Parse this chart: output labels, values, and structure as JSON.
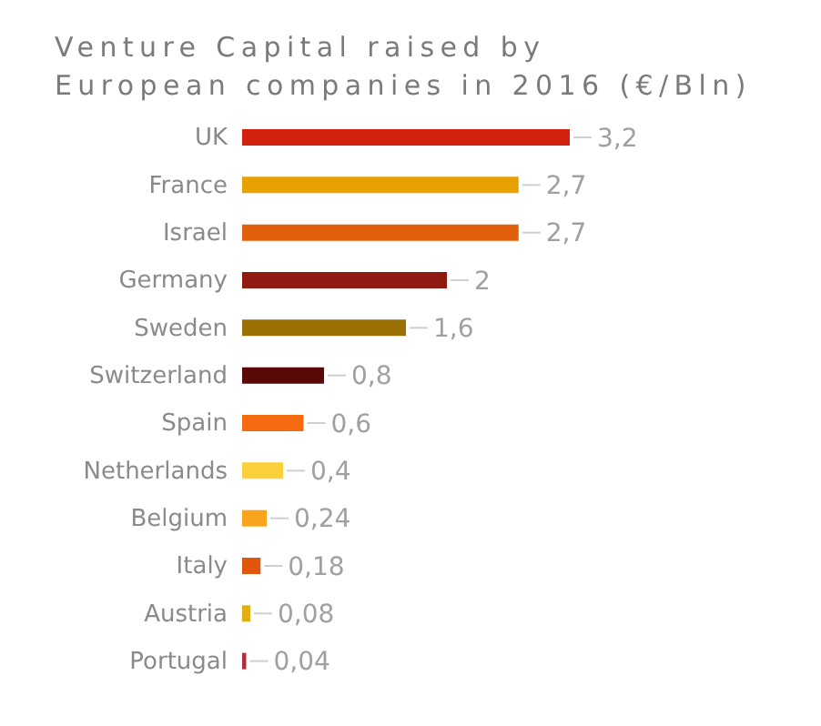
{
  "chart_data": {
    "type": "bar",
    "orientation": "horizontal",
    "title": "Venture Capital raised by\nEuropean companies in 2016 (€/Bln)",
    "categories": [
      "UK",
      "France",
      "Israel",
      "Germany",
      "Sweden",
      "Switzerland",
      "Spain",
      "Netherlands",
      "Belgium",
      "Italy",
      "Austria",
      "Portugal"
    ],
    "values": [
      3.2,
      2.7,
      2.7,
      2,
      1.6,
      0.8,
      0.6,
      0.4,
      0.24,
      0.18,
      0.08,
      0.04
    ],
    "value_labels": [
      "3,2",
      "2,7",
      "2,7",
      "2",
      "1,6",
      "0,8",
      "0,6",
      "0,4",
      "0,24",
      "0,18",
      "0,08",
      "0,04"
    ],
    "colors": [
      "#d2220e",
      "#e8a200",
      "#e2600c",
      "#8e1a12",
      "#9a7004",
      "#5a0808",
      "#f56a10",
      "#fcd03c",
      "#f8a41c",
      "#e0560e",
      "#e0b010",
      "#b03040"
    ],
    "tick_labels": "y"
  }
}
